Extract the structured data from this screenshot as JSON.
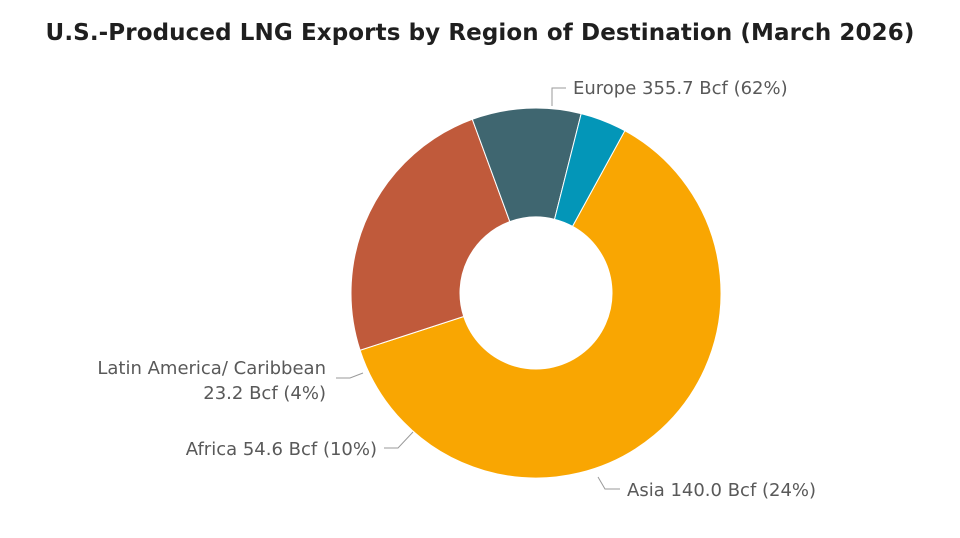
{
  "chart_data": {
    "type": "pie",
    "title": "U.S.-Produced LNG Exports by Region of Destination (March 2026)",
    "unit": "Bcf",
    "slices": [
      {
        "label": "Europe",
        "value": 355.7,
        "percent": 62,
        "color": "#F9A602"
      },
      {
        "label": "Asia",
        "value": 140.0,
        "percent": 24,
        "color": "#C05A3B"
      },
      {
        "label": "Africa",
        "value": 54.6,
        "percent": 10,
        "color": "#3F6670"
      },
      {
        "label": "Latin America/ Caribbean",
        "value": 23.2,
        "percent": 4,
        "color": "#0396B8"
      }
    ],
    "slice_labels": {
      "europe": "Europe 355.7 Bcf (62%)",
      "asia": "Asia 140.0 Bcf (24%)",
      "africa": "Africa 54.6 Bcf (10%)",
      "latin_line1": "Latin America/ Caribbean",
      "latin_line2": "23.2 Bcf (4%)"
    }
  }
}
